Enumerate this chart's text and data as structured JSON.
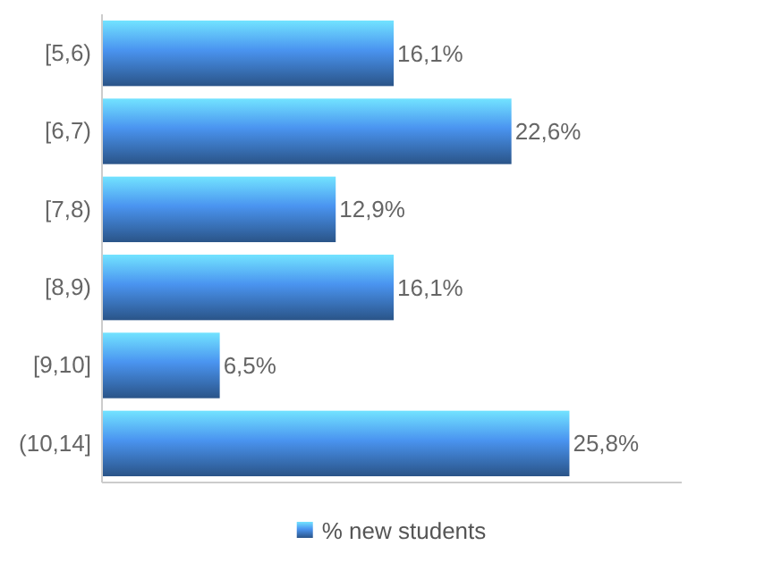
{
  "chart_data": {
    "type": "bar",
    "orientation": "horizontal",
    "categories": [
      "[5,6)",
      "[6,7)",
      "[7,8)",
      "[8,9)",
      "[9,10]",
      "(10,14]"
    ],
    "xlim": [
      0,
      32
    ],
    "series": [
      {
        "name": "% new students",
        "color": "#4a94f0",
        "values": [
          16.1,
          22.6,
          12.9,
          16.1,
          6.5,
          25.8
        ],
        "value_labels": [
          "16,1%",
          "22,6%",
          "12,9%",
          "16,1%",
          "6,5%",
          "25,8%"
        ]
      }
    ],
    "legend": "bottom"
  }
}
